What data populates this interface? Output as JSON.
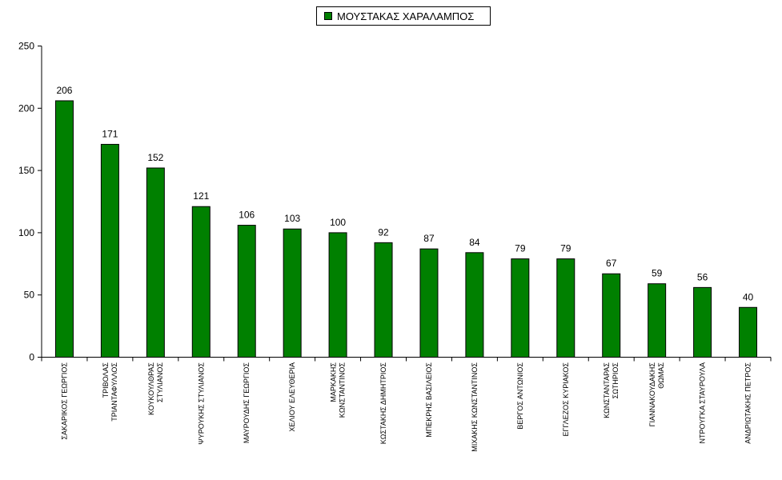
{
  "chart_data": {
    "type": "bar",
    "title": "",
    "xlabel": "",
    "ylabel": "",
    "ylim": [
      0,
      250
    ],
    "yticks": [
      0,
      50,
      100,
      150,
      200,
      250
    ],
    "grid": false,
    "legend_position": "top-center",
    "bar_color": "#008000",
    "categories": [
      [
        "ΣΑΚΑΡΙΚΟΣ ΓΕΩΡΓΙΟΣ"
      ],
      [
        "ΤΡΙΒΟΛΑΣ",
        "ΤΡΙΑΝΤΑΦΥΛΛΟΣ"
      ],
      [
        "ΚΟΥΚΟΥΛΘΡΑΣ",
        "ΣΤΥΛΙΑΝΟΣ"
      ],
      [
        "ΨΥΡΟΥΚΗΣ ΣΤΥΛΙΑΝΟΣ"
      ],
      [
        "ΜΑΥΡΟΥΔΗΣ ΓΕΩΡΓΙΟΣ"
      ],
      [
        "ΧΕΛΙΟΥ ΕΛΕΥΘΕΡΙΑ"
      ],
      [
        "ΜΑΡΚΑΚΗΣ",
        "ΚΩΝΣΤΑΝΤΙΝΟΣ"
      ],
      [
        "ΚΩΣΤΑΚΗΣ ΔΗΜΗΤΡΙΟΣ"
      ],
      [
        "ΜΠΕΚΡΗΣ ΒΑΣΙΛΕΙΟΣ"
      ],
      [
        "ΜΙΧΑΚΗΣ ΚΩΝΣΤΑΝΤΙΝΟΣ"
      ],
      [
        "ΒΕΡΓΟΣ ΑΝΤΩΝΙΟΣ"
      ],
      [
        "ΕΓΓΛΕΖΟΣ ΚΥΡΙΑΚΟΣ"
      ],
      [
        "ΚΩΝΣΤΑΝΤΑΡΑΣ",
        "ΣΩΤΗΡΙΟΣ"
      ],
      [
        "ΓΙΑΝΝΑΚΟΥΔΑΚΗΣ",
        "ΘΩΜΑΣ"
      ],
      [
        "ΝΤΡΟΥΓΚΑ ΣΤΑΥΡΟΥΛΑ"
      ],
      [
        "ΑΝΔΡΙΩΤΑΚΗΣ ΠΕΤΡΟΣ"
      ]
    ],
    "series": [
      {
        "name": "ΜΟΥΣΤΑΚΑΣ ΧΑΡΑΛΑΜΠΟΣ",
        "values": [
          206,
          171,
          152,
          121,
          106,
          103,
          100,
          92,
          87,
          84,
          79,
          79,
          67,
          59,
          56,
          40
        ]
      }
    ]
  }
}
